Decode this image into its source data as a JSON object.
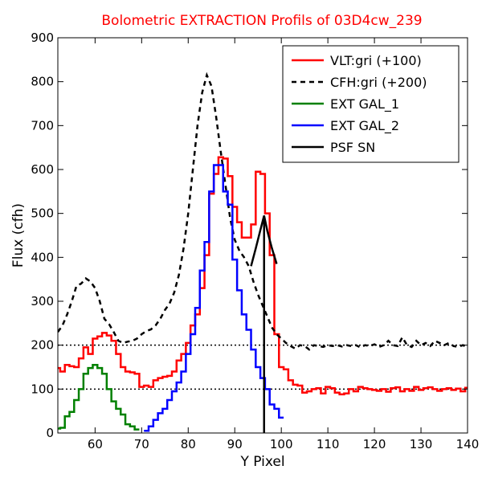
{
  "chart_data": {
    "type": "line",
    "title": "Bolometric EXTRACTION Profils of 03D4cw_239",
    "xlabel": "Y Pixel",
    "ylabel": "Flux (cfh)",
    "xlim": [
      52,
      140
    ],
    "ylim": [
      0,
      900
    ],
    "x_ticks": [
      60,
      70,
      80,
      90,
      100,
      110,
      120,
      130,
      140
    ],
    "y_ticks": [
      0,
      100,
      200,
      300,
      400,
      500,
      600,
      700,
      800,
      900
    ],
    "grid": false,
    "legend_position": "top-right",
    "reference_lines": [
      {
        "y": 100,
        "style": "dotted",
        "color": "#000000"
      },
      {
        "y": 200,
        "style": "dotted",
        "color": "#000000"
      }
    ],
    "series": [
      {
        "name": "VLT:gri (+100)",
        "color": "#ff0000",
        "style": "steps",
        "x": [
          52,
          53,
          54,
          55,
          56,
          57,
          58,
          59,
          60,
          61,
          62,
          63,
          64,
          65,
          66,
          67,
          68,
          69,
          70,
          71,
          72,
          73,
          74,
          75,
          76,
          77,
          78,
          79,
          80,
          81,
          82,
          83,
          84,
          85,
          86,
          87,
          88,
          89,
          90,
          91,
          92,
          93,
          94,
          95,
          96,
          97,
          98,
          99,
          100,
          101,
          102,
          103,
          104,
          105,
          106,
          107,
          108,
          109,
          110,
          111,
          112,
          113,
          114,
          115,
          116,
          117,
          118,
          119,
          120,
          121,
          122,
          123,
          124,
          125,
          126,
          127,
          128,
          129,
          130,
          131,
          132,
          133,
          134,
          135,
          136,
          137,
          138,
          139,
          140
        ],
        "y": [
          148,
          140,
          155,
          152,
          150,
          170,
          195,
          180,
          215,
          220,
          228,
          222,
          210,
          180,
          150,
          140,
          138,
          135,
          105,
          108,
          105,
          120,
          125,
          128,
          130,
          140,
          165,
          180,
          205,
          245,
          270,
          330,
          405,
          545,
          590,
          628,
          625,
          585,
          515,
          480,
          445,
          445,
          475,
          595,
          590,
          500,
          405,
          225,
          150,
          145,
          120,
          110,
          108,
          92,
          95,
          100,
          102,
          90,
          105,
          102,
          92,
          88,
          90,
          100,
          95,
          105,
          102,
          100,
          98,
          96,
          100,
          94,
          102,
          104,
          95,
          100,
          96,
          105,
          98,
          102,
          104,
          100,
          96,
          100,
          102,
          98,
          101,
          95,
          103
        ]
      },
      {
        "name": "CFH:gri (+200)",
        "color": "#000000",
        "style": "dashed",
        "x": [
          52,
          53,
          54,
          55,
          56,
          57,
          58,
          59,
          60,
          61,
          62,
          63,
          64,
          65,
          66,
          67,
          68,
          69,
          70,
          71,
          72,
          73,
          74,
          75,
          76,
          77,
          78,
          79,
          80,
          81,
          82,
          83,
          84,
          85,
          86,
          87,
          88,
          89,
          90,
          91,
          92,
          93,
          94,
          95,
          96,
          97,
          98,
          99,
          100,
          101,
          102,
          103,
          104,
          105,
          106,
          107,
          108,
          109,
          110,
          111,
          112,
          113,
          114,
          115,
          116,
          117,
          118,
          119,
          120,
          121,
          122,
          123,
          124,
          125,
          126,
          127,
          128,
          129,
          130,
          131,
          132,
          133,
          134,
          135,
          136,
          137,
          138,
          139,
          140
        ],
        "y": [
          230,
          245,
          270,
          300,
          335,
          340,
          352,
          345,
          330,
          300,
          260,
          248,
          230,
          210,
          205,
          208,
          210,
          215,
          225,
          232,
          236,
          245,
          260,
          280,
          295,
          320,
          360,
          420,
          500,
          600,
          700,
          775,
          815,
          790,
          720,
          640,
          565,
          490,
          440,
          415,
          400,
          380,
          345,
          315,
          290,
          265,
          240,
          225,
          215,
          205,
          198,
          192,
          200,
          198,
          190,
          200,
          198,
          196,
          200,
          198,
          200,
          197,
          200,
          198,
          200,
          195,
          200,
          198,
          202,
          196,
          200,
          210,
          200,
          198,
          218,
          200,
          196,
          210,
          200,
          205,
          198,
          210,
          205,
          200,
          205,
          198,
          196,
          200,
          195
        ]
      },
      {
        "name": "EXT GAL_1",
        "color": "#008000",
        "style": "steps",
        "x": [
          52,
          53,
          54,
          55,
          56,
          57,
          58,
          59,
          60,
          61,
          62,
          63,
          64,
          65,
          66,
          67,
          68,
          69
        ],
        "y": [
          10,
          12,
          38,
          48,
          75,
          100,
          135,
          148,
          155,
          148,
          135,
          100,
          72,
          55,
          42,
          20,
          15,
          8
        ]
      },
      {
        "name": "EXT GAL_2",
        "color": "#0000ff",
        "style": "steps",
        "x": [
          71,
          72,
          73,
          74,
          75,
          76,
          77,
          78,
          79,
          80,
          81,
          82,
          83,
          84,
          85,
          86,
          87,
          88,
          89,
          90,
          91,
          92,
          93,
          94,
          95,
          96,
          97,
          98,
          99,
          100
        ],
        "y": [
          5,
          15,
          30,
          45,
          55,
          75,
          95,
          115,
          140,
          180,
          225,
          285,
          370,
          435,
          550,
          610,
          610,
          550,
          520,
          395,
          325,
          270,
          235,
          190,
          150,
          125,
          100,
          65,
          55,
          35
        ]
      },
      {
        "name": "PSF SN",
        "color": "#000000",
        "style": "solid",
        "x": [
          93.5,
          94.5,
          95.5,
          96.3,
          97,
          98,
          99
        ],
        "y": [
          380,
          420,
          462,
          495,
          460,
          420,
          385
        ],
        "vline": {
          "x": 96.3,
          "y0": 0,
          "y1": 495
        }
      }
    ]
  }
}
